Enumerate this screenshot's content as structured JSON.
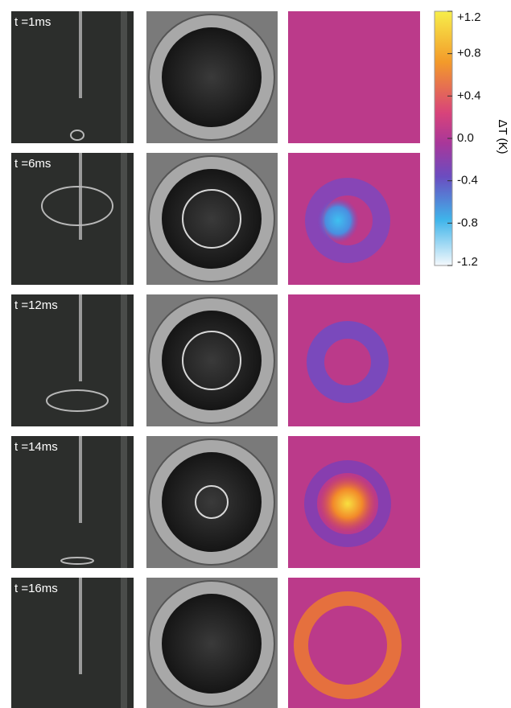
{
  "panels": [
    {
      "label": "t =1ms"
    },
    {
      "label": "t =6ms"
    },
    {
      "label": "t =12ms"
    },
    {
      "label": "t =14ms"
    },
    {
      "label": "t =16ms"
    }
  ],
  "colorbar": {
    "label": "ΔT (K)",
    "lim": [
      -1.2,
      1.2
    ],
    "ticks": [
      {
        "value": 1.2,
        "label": "+1.2"
      },
      {
        "value": 0.8,
        "label": "+0.8"
      },
      {
        "value": 0.4,
        "label": "+0.4"
      },
      {
        "value": 0,
        "label": "0.0"
      },
      {
        "value": -0.4,
        "label": "-0.4"
      },
      {
        "value": -0.8,
        "label": "-0.8"
      },
      {
        "value": -1.2,
        "label": "-1.2"
      }
    ]
  }
}
